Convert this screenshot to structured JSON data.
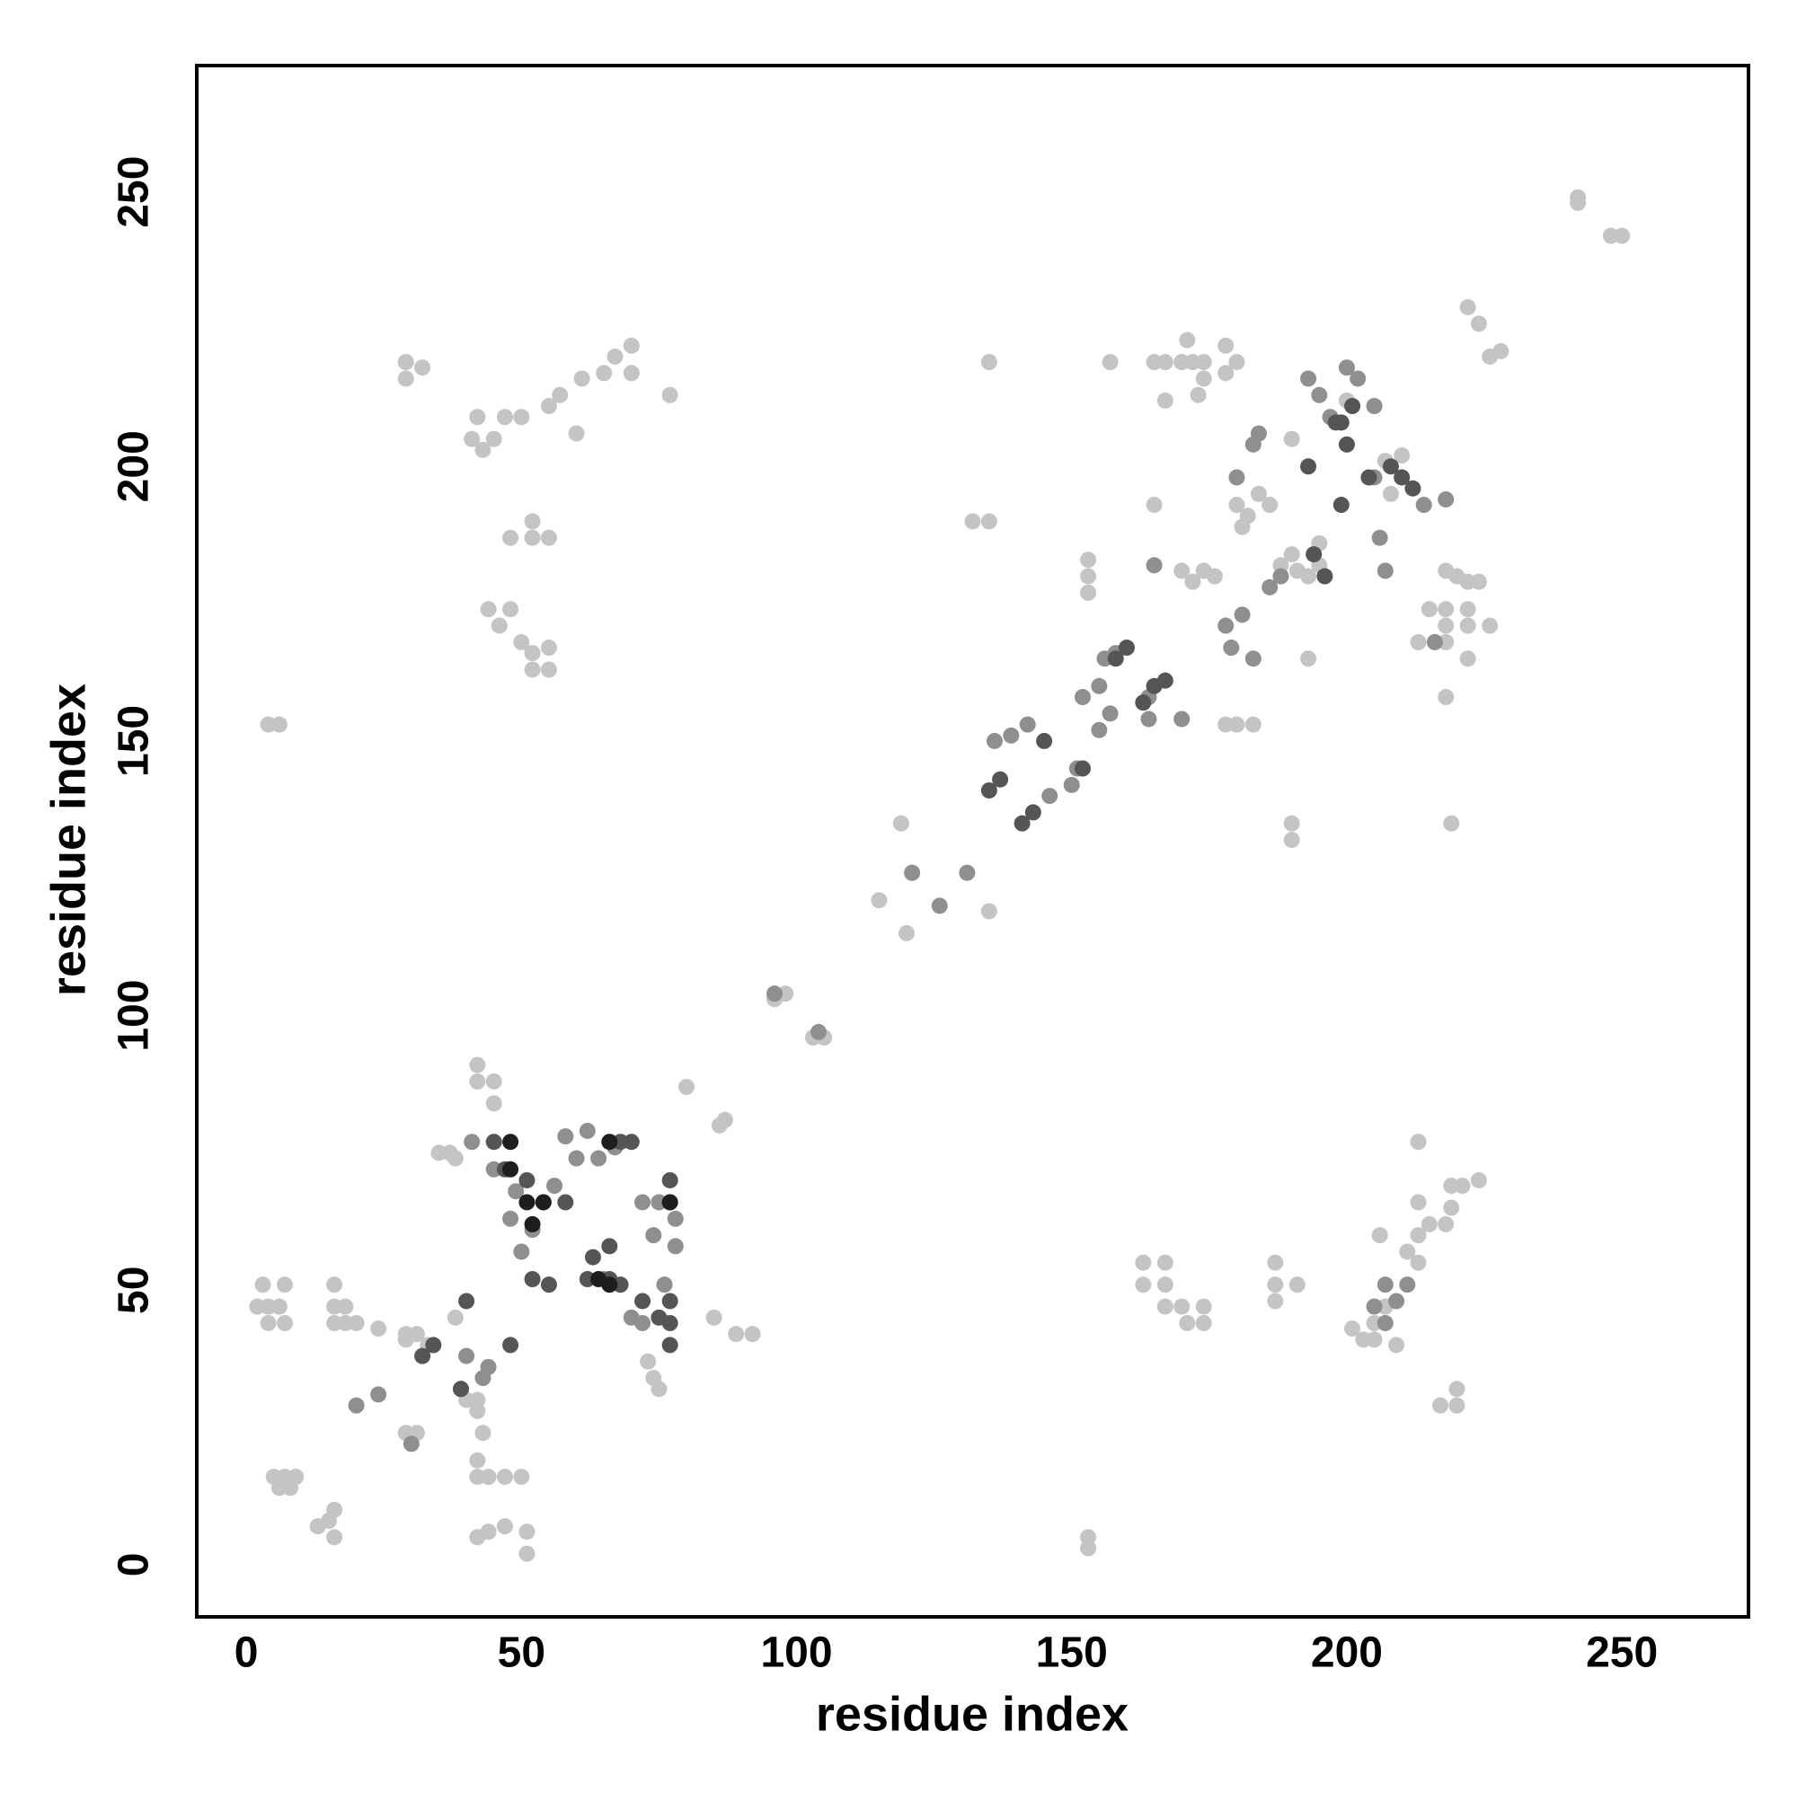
{
  "chart_data": {
    "type": "scatter",
    "xlabel": "residue index",
    "ylabel": "residue index",
    "xlim": [
      -9,
      273
    ],
    "ylim": [
      -9.5,
      273
    ],
    "xticks": [
      0,
      50,
      100,
      150,
      200,
      250
    ],
    "yticks": [
      0,
      50,
      100,
      150,
      200,
      250
    ],
    "grid": false,
    "series": [
      {
        "color": "#c4c4c4",
        "x": [
          2,
          4,
          6,
          3,
          7,
          4,
          7,
          5,
          7,
          9,
          6,
          8,
          13,
          15,
          16,
          16,
          16,
          16,
          18,
          16,
          18,
          20,
          24,
          29,
          31,
          33,
          29,
          35,
          37,
          38,
          38,
          40,
          42,
          42,
          43,
          42,
          42,
          44,
          47,
          50,
          42,
          44,
          47,
          51,
          51,
          42,
          42,
          45,
          45,
          80,
          87,
          86,
          85,
          89,
          92,
          6,
          4,
          73,
          74,
          75,
          29,
          31
        ],
        "values": [
          47,
          47,
          47,
          51,
          51,
          44,
          44,
          16,
          16,
          16,
          14,
          14,
          7,
          8,
          10,
          5,
          51,
          47,
          47,
          44,
          44,
          44,
          43,
          42,
          42,
          40,
          41,
          75,
          75,
          74,
          45,
          30,
          30,
          28,
          24,
          19,
          16,
          16,
          16,
          16,
          5,
          6,
          7,
          6,
          2,
          91,
          88,
          88,
          84,
          87,
          81,
          80,
          45,
          42,
          42,
          153,
          153,
          37,
          34,
          32,
          24,
          24
        ]
      },
      {
        "color": "#c4c4c4",
        "x": [
          29,
          29,
          32,
          41,
          43,
          45,
          47,
          42,
          50,
          55,
          57,
          61,
          65,
          67,
          70,
          70,
          77,
          60,
          48,
          52,
          55,
          52,
          44,
          48,
          46,
          50,
          52,
          52,
          55,
          55,
          96,
          98,
          103,
          105,
          115,
          120,
          119,
          121,
          135,
          135,
          132,
          135
        ],
        "values": [
          219,
          216,
          218,
          205,
          203,
          205,
          209,
          209,
          209,
          211,
          213,
          216,
          217,
          220,
          222,
          217,
          213,
          206,
          187,
          187,
          187,
          190,
          174,
          174,
          171,
          168,
          166,
          163,
          167,
          163,
          103,
          104,
          96,
          96,
          121,
          115,
          135,
          126,
          119,
          219,
          190,
          190
        ]
      },
      {
        "color": "#c4c4c4",
        "x": [
          153,
          153,
          153,
          153,
          153,
          157,
          165,
          165,
          167,
          170,
          171,
          172,
          174,
          174,
          167,
          173,
          178,
          180,
          178,
          170,
          172,
          174,
          176,
          183,
          180,
          178,
          190,
          190,
          193,
          190,
          200,
          205,
          207,
          208,
          210,
          222,
          224,
          226,
          228,
          242,
          242,
          248,
          250,
          218,
          220,
          222,
          224,
          215,
          218,
          222,
          218,
          222,
          226,
          218,
          222,
          218,
          219,
          213,
          180,
          182,
          184,
          186,
          181,
          190,
          191,
          193,
          195,
          195,
          188
        ],
        "values": [
          5,
          3,
          183,
          180,
          177,
          219,
          193,
          219,
          219,
          219,
          223,
          219,
          219,
          216,
          212,
          213,
          222,
          219,
          217,
          181,
          179,
          181,
          180,
          153,
          153,
          153,
          135,
          132,
          165,
          205,
          212,
          211,
          201,
          195,
          202,
          229,
          226,
          220,
          221,
          249,
          248,
          242,
          242,
          181,
          180,
          179,
          179,
          174,
          174,
          174,
          171,
          171,
          171,
          168,
          165,
          158,
          135,
          168,
          193,
          191,
          195,
          193,
          189,
          184,
          181,
          180,
          182,
          186,
          182
        ]
      },
      {
        "color": "#c4c4c4",
        "x": [
          163,
          163,
          167,
          167,
          167,
          170,
          171,
          174,
          174,
          187,
          187,
          187,
          191,
          201,
          203,
          205,
          205,
          207,
          209,
          211,
          213,
          213,
          215,
          218,
          219,
          219,
          221,
          224,
          213,
          213,
          217,
          220,
          220,
          206
        ],
        "values": [
          55,
          51,
          55,
          51,
          47,
          47,
          44,
          47,
          44,
          55,
          51,
          48,
          51,
          43,
          41,
          41,
          44,
          47,
          40,
          57,
          55,
          60,
          62,
          62,
          65,
          69,
          69,
          70,
          66,
          77,
          29,
          29,
          32,
          60
        ]
      },
      {
        "color": "#8f8f8f",
        "x": [
          20,
          24,
          30,
          39,
          40,
          43,
          44,
          41,
          45,
          49,
          48,
          50,
          52,
          56,
          58,
          60,
          62,
          64,
          67,
          65,
          70,
          72,
          76,
          78,
          74,
          72,
          75,
          78,
          96,
          104,
          121,
          126,
          131,
          136,
          139,
          142,
          146,
          150,
          151,
          152,
          155,
          155,
          156,
          158,
          157,
          164,
          164,
          170,
          165,
          178,
          179,
          181,
          183,
          180,
          183,
          184,
          188,
          186,
          193,
          195,
          197,
          200,
          202,
          205,
          207,
          206,
          205,
          214,
          218,
          216,
          211,
          207,
          209,
          207,
          205
        ],
        "values": [
          29,
          31,
          22,
          32,
          38,
          34,
          36,
          77,
          72,
          68,
          63,
          57,
          61,
          69,
          78,
          74,
          79,
          74,
          76,
          52,
          45,
          44,
          51,
          58,
          60,
          66,
          66,
          63,
          104,
          97,
          126,
          120,
          126,
          150,
          151,
          153,
          140,
          142,
          145,
          158,
          160,
          152,
          165,
          166,
          155,
          158,
          154,
          154,
          182,
          171,
          167,
          173,
          165,
          198,
          204,
          206,
          180,
          178,
          216,
          213,
          209,
          218,
          216,
          211,
          181,
          187,
          198,
          193,
          194,
          168,
          51,
          51,
          48,
          44,
          47
        ]
      },
      {
        "color": "#555555",
        "x": [
          32,
          34,
          39,
          40,
          48,
          45,
          47,
          51,
          54,
          58,
          52,
          55,
          62,
          63,
          66,
          66,
          68,
          72,
          75,
          77,
          77,
          77,
          77,
          77,
          68,
          70,
          135,
          137,
          141,
          143,
          145,
          152,
          160,
          158,
          163,
          165,
          167,
          199,
          193,
          200,
          198,
          201,
          199,
          204,
          208,
          210,
          212,
          194,
          196
        ],
        "values": [
          38,
          40,
          32,
          48,
          40,
          77,
          72,
          70,
          66,
          66,
          52,
          51,
          52,
          56,
          58,
          52,
          51,
          48,
          45,
          48,
          44,
          40,
          70,
          66,
          77,
          77,
          141,
          143,
          135,
          137,
          150,
          145,
          167,
          165,
          157,
          160,
          161,
          193,
          200,
          204,
          208,
          211,
          208,
          198,
          200,
          198,
          196,
          184,
          180
        ]
      },
      {
        "color": "#1e1e1e",
        "x": [
          51,
          52,
          54,
          66,
          64,
          66,
          77,
          48,
          48
        ],
        "values": [
          66,
          62,
          66,
          77,
          52,
          51,
          66,
          77,
          72
        ]
      }
    ]
  }
}
